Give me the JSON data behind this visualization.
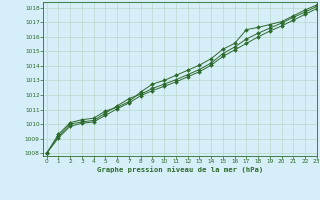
{
  "title": "Graphe pression niveau de la mer (hPa)",
  "bg_color": "#d6eef8",
  "line_color": "#2d6a2d",
  "grid_color": "#b8d8cc",
  "xlim": [
    -0.3,
    23
  ],
  "ylim": [
    1007.8,
    1018.4
  ],
  "yticks": [
    1008,
    1009,
    1010,
    1011,
    1012,
    1013,
    1014,
    1015,
    1016,
    1017,
    1018
  ],
  "xticks": [
    0,
    1,
    2,
    3,
    4,
    5,
    6,
    7,
    8,
    9,
    10,
    11,
    12,
    13,
    14,
    15,
    16,
    17,
    18,
    19,
    20,
    21,
    22,
    23
  ],
  "series1": [
    1008.0,
    1009.3,
    1010.1,
    1010.3,
    1010.4,
    1010.9,
    1011.15,
    1011.55,
    1012.2,
    1012.75,
    1013.0,
    1013.35,
    1013.7,
    1014.05,
    1014.5,
    1015.15,
    1015.55,
    1016.5,
    1016.65,
    1016.85,
    1017.05,
    1017.45,
    1017.85,
    1018.2
  ],
  "series2": [
    1008.0,
    1009.15,
    1010.0,
    1010.15,
    1010.25,
    1010.75,
    1011.25,
    1011.75,
    1012.05,
    1012.45,
    1012.75,
    1013.05,
    1013.4,
    1013.75,
    1014.2,
    1014.85,
    1015.3,
    1015.85,
    1016.25,
    1016.6,
    1016.95,
    1017.35,
    1017.7,
    1018.1
  ],
  "series3": [
    1008.0,
    1009.05,
    1009.85,
    1010.05,
    1010.15,
    1010.6,
    1011.05,
    1011.45,
    1011.95,
    1012.3,
    1012.6,
    1012.9,
    1013.25,
    1013.6,
    1014.05,
    1014.65,
    1015.1,
    1015.55,
    1016.0,
    1016.4,
    1016.75,
    1017.15,
    1017.55,
    1017.95
  ]
}
